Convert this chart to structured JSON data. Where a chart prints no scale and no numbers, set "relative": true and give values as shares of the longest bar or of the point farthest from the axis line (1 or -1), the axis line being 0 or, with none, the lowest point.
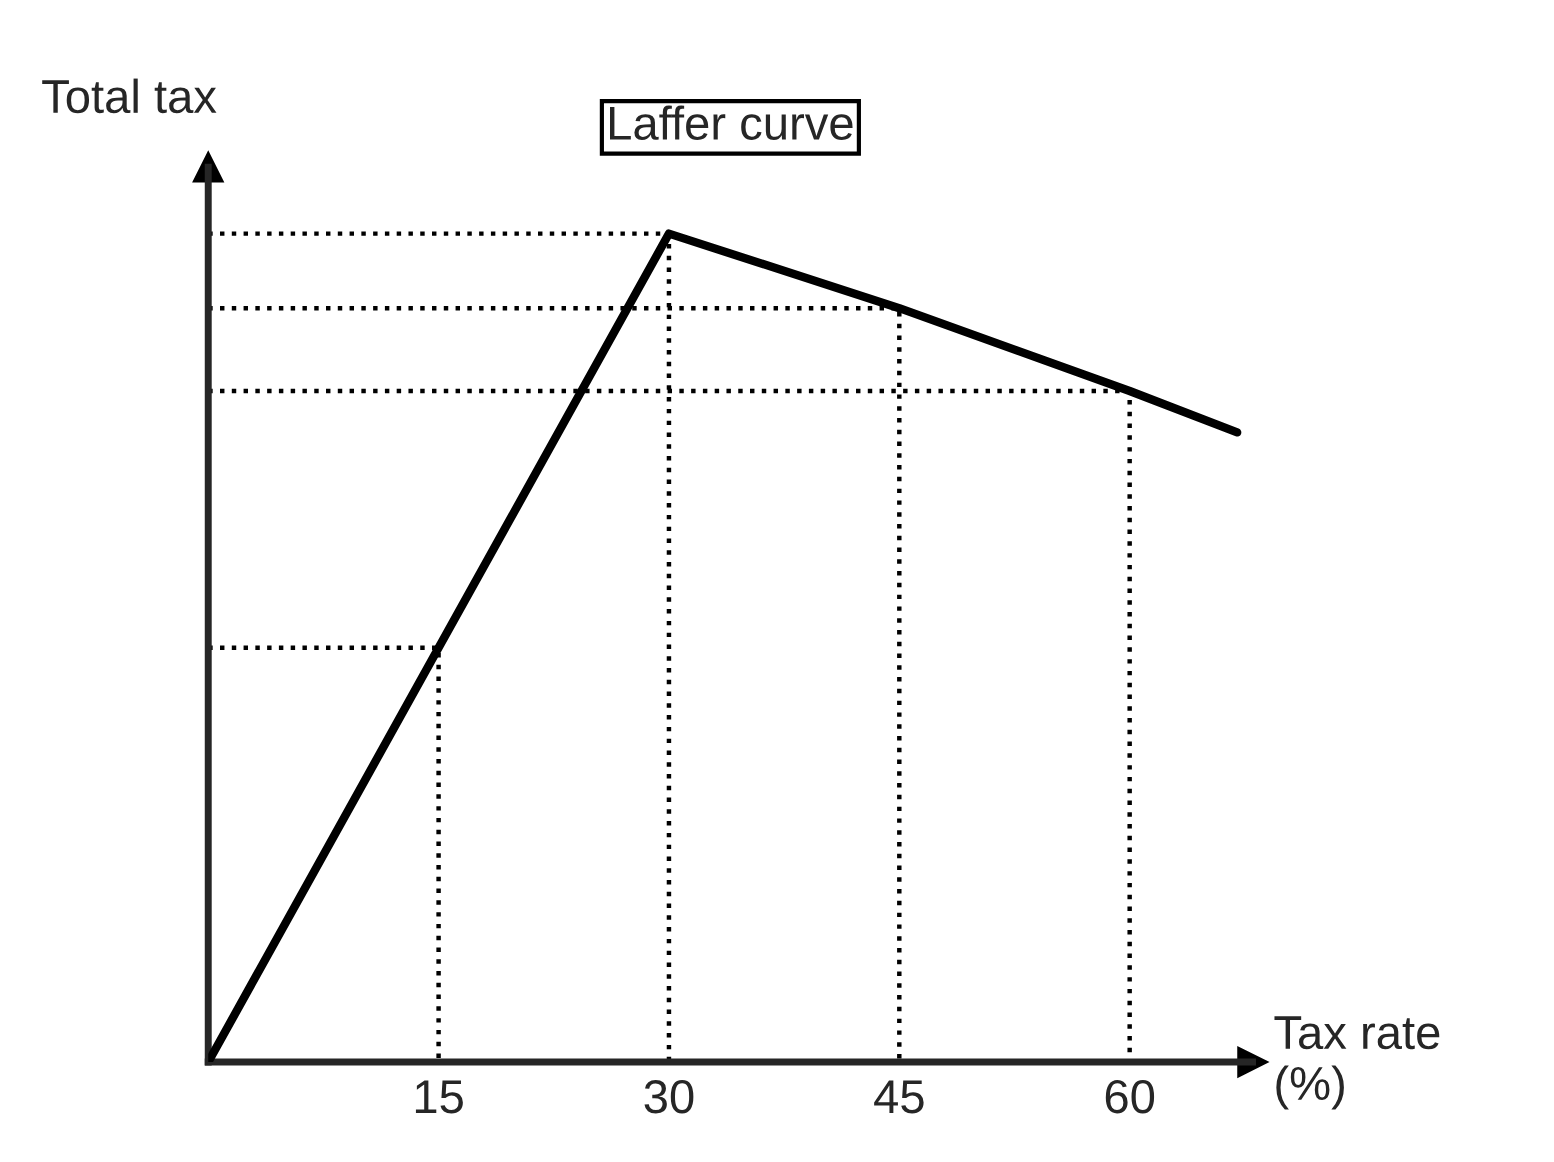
{
  "chart_data": {
    "type": "line",
    "title": "Laffer curve",
    "xlabel": "Tax rate\n(%)",
    "ylabel": "Total tax",
    "relative": true,
    "xlim": [
      0,
      68
    ],
    "xticks": [
      15,
      30,
      45,
      60
    ],
    "grid": false,
    "tick_labels": "x",
    "series": [
      {
        "color": "#000000",
        "line_style": "solid",
        "x": [
          0,
          15,
          30,
          45,
          60,
          67
        ],
        "values": [
          0,
          0.5,
          1,
          0.91,
          0.81,
          0.76
        ]
      },
      {
        "color": "#000000",
        "line_style": "dotted",
        "x": [
          0,
          15,
          15
        ],
        "values": [
          0.5,
          0.5,
          0
        ]
      },
      {
        "color": "#000000",
        "line_style": "dotted",
        "x": [
          0,
          30,
          30
        ],
        "values": [
          1,
          1,
          0
        ]
      },
      {
        "color": "#000000",
        "line_style": "dotted",
        "x": [
          0,
          45,
          45
        ],
        "values": [
          0.91,
          0.91,
          0
        ]
      },
      {
        "color": "#000000",
        "line_style": "dotted",
        "x": [
          0,
          60,
          60
        ],
        "values": [
          0.81,
          0.81,
          0
        ]
      }
    ]
  }
}
